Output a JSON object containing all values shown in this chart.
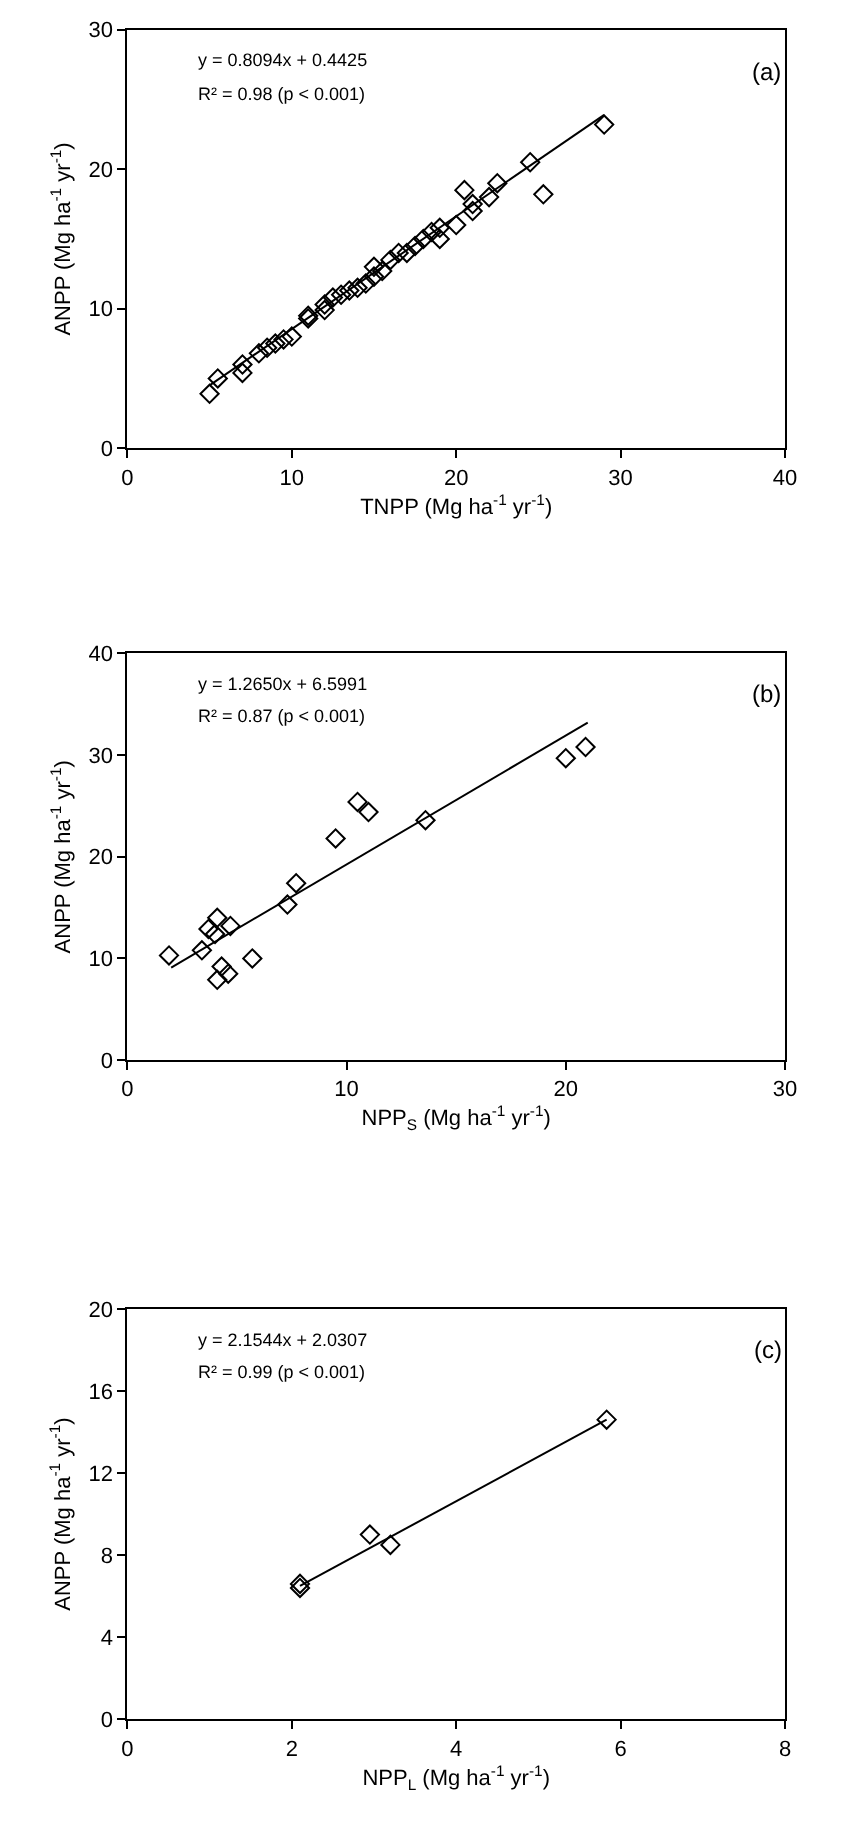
{
  "chart_data": [
    {
      "type": "scatter",
      "xlabel": "TNPP (Mg ha$^{-1}$ yr$^{-1}$)",
      "ylabel": "ANPP (Mg ha$^{-1}$ yr$^{-1}$)",
      "xlim": [
        0,
        40
      ],
      "xticks": [
        0,
        10,
        20,
        30,
        40
      ],
      "ylim": [
        0,
        30
      ],
      "yticks": [
        0,
        10,
        20,
        30
      ],
      "annotations": [
        "y = 0.8094x + 0.4425",
        "R² = 0.98 (p < 0.001)",
        "(a)"
      ],
      "series": [
        {
          "color": "#000000",
          "marker": "diamond",
          "x": [
            5,
            5.5,
            7,
            7,
            8,
            8.5,
            9,
            9.5,
            10,
            11,
            11,
            12,
            12,
            12.5,
            13,
            13.5,
            14,
            14.5,
            15,
            15,
            15.5,
            16,
            16.5,
            17,
            17.5,
            18,
            18.5,
            19,
            19,
            20,
            20.5,
            21,
            21,
            22,
            22.5,
            24.5,
            25.3,
            29
          ],
          "values": [
            3.9,
            5,
            5.4,
            6,
            6.8,
            7.2,
            7.5,
            7.8,
            8,
            9.3,
            9.5,
            9.9,
            10.3,
            10.8,
            11,
            11.3,
            11.5,
            11.8,
            12.3,
            13,
            12.7,
            13.5,
            14,
            14,
            14.5,
            15,
            15.5,
            15,
            15.8,
            16,
            18.5,
            17,
            17.5,
            18,
            19,
            20.5,
            18.2,
            23.2
          ]
        },
        {
          "type": "line",
          "marker": "none",
          "color": "#000000",
          "x": [
            5,
            29
          ],
          "values": [
            4.5,
            23.9
          ]
        }
      ]
    },
    {
      "type": "scatter",
      "xlabel": "NPP$_{S}$ (Mg ha$^{-1}$ yr$^{-1}$)",
      "ylabel": "ANPP (Mg ha$^{-1}$ yr$^{-1}$)",
      "xlim": [
        0,
        30
      ],
      "xticks": [
        0,
        10,
        20,
        30
      ],
      "ylim": [
        0,
        40
      ],
      "yticks": [
        0,
        10,
        20,
        30,
        40
      ],
      "annotations": [
        "y = 1.2650x + 6.5991",
        "R² = 0.87 (p < 0.001)",
        "(b)"
      ],
      "series": [
        {
          "color": "#000000",
          "marker": "diamond",
          "x": [
            1.9,
            3.4,
            3.7,
            4.1,
            4,
            4.7,
            4.3,
            4.1,
            4.6,
            5.7,
            7.3,
            7.7,
            9.5,
            10.5,
            11,
            13.6,
            20,
            20.9
          ],
          "values": [
            10.3,
            10.8,
            12.9,
            14,
            12.4,
            13.2,
            9.2,
            7.9,
            8.5,
            10,
            15.3,
            17.4,
            21.8,
            25.4,
            24.4,
            23.6,
            29.7,
            30.8
          ]
        },
        {
          "type": "line",
          "marker": "none",
          "color": "#000000",
          "x": [
            2,
            21
          ],
          "values": [
            9.1,
            33.2
          ]
        }
      ]
    },
    {
      "type": "scatter",
      "xlabel": "NPP$_{L}$ (Mg ha$^{-1}$ yr$^{-1}$)",
      "ylabel": "ANPP (Mg ha$^{-1}$ yr$^{-1}$)",
      "xlim": [
        0,
        8
      ],
      "xticks": [
        0,
        2,
        4,
        6,
        8
      ],
      "ylim": [
        0,
        20
      ],
      "yticks": [
        0,
        4,
        8,
        12,
        16,
        20
      ],
      "annotations": [
        "y = 2.1544x + 2.0307",
        "R² = 0.99 (p < 0.001)",
        "(c)"
      ],
      "series": [
        {
          "color": "#000000",
          "marker": "diamond",
          "x": [
            2.1,
            2.1,
            2.95,
            3.2,
            5.83
          ],
          "values": [
            6.4,
            6.6,
            9.0,
            8.5,
            14.6
          ]
        },
        {
          "type": "line",
          "marker": "none",
          "color": "#000000",
          "x": [
            2.1,
            5.83
          ],
          "values": [
            6.5,
            14.6
          ]
        }
      ]
    }
  ]
}
